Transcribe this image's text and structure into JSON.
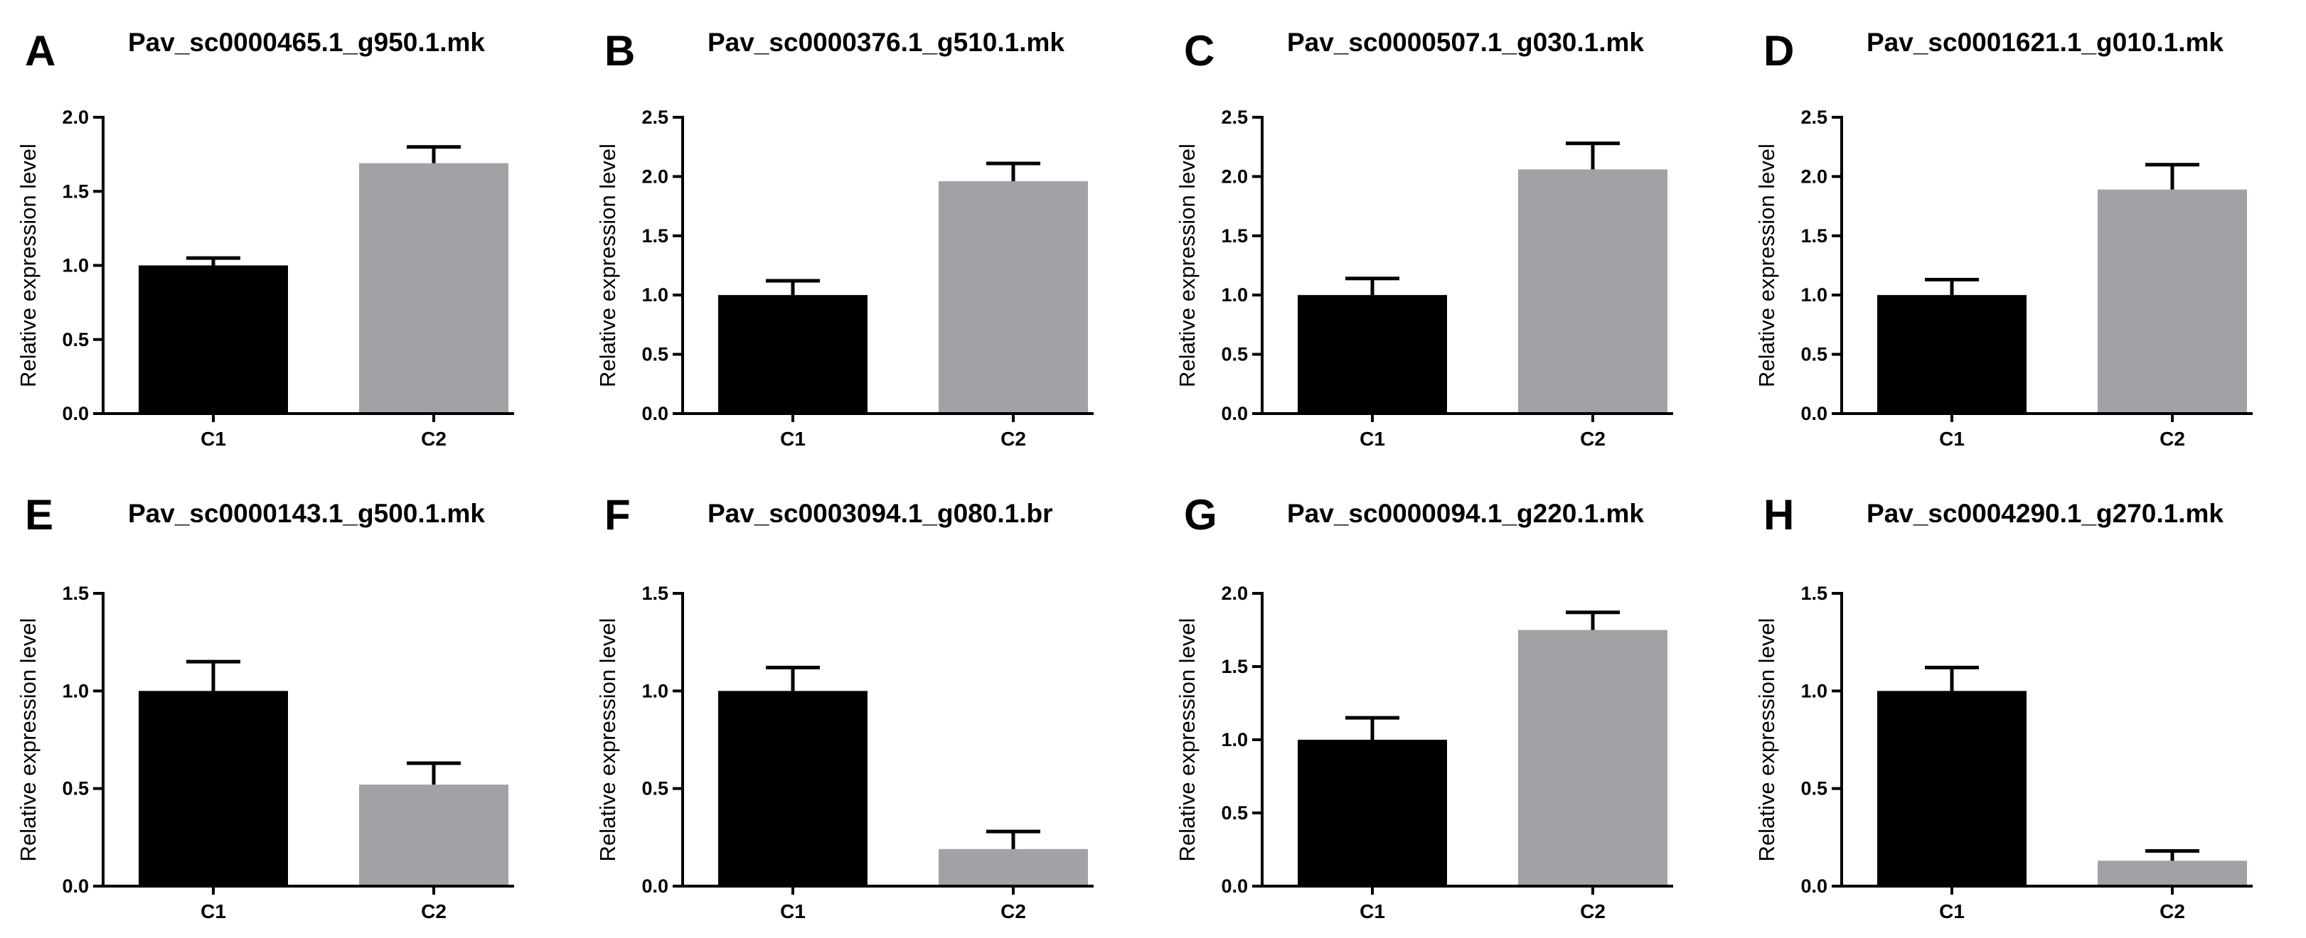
{
  "colors": {
    "c1_bar": "#000000",
    "c2_bar": "#a3a1a6",
    "axis": "#000000"
  },
  "chart_data": [
    {
      "panel": "A",
      "type": "bar",
      "title": "Pav_sc0000465.1_g950.1.mk",
      "xlabel": "",
      "ylabel": "Relative expression level",
      "categories": [
        "C1",
        "C2"
      ],
      "values": [
        1.0,
        1.69
      ],
      "errors": [
        0.05,
        0.11
      ],
      "ylim": [
        0,
        2.0
      ],
      "yticks": [
        0.0,
        0.5,
        1.0,
        1.5,
        2.0
      ],
      "ytick_labels": [
        "0.0",
        "0.5",
        "1.0",
        "1.5",
        "2.0"
      ]
    },
    {
      "panel": "B",
      "type": "bar",
      "title": "Pav_sc0000376.1_g510.1.mk",
      "xlabel": "",
      "ylabel": "Relative expression level",
      "categories": [
        "C1",
        "C2"
      ],
      "values": [
        1.0,
        1.96
      ],
      "errors": [
        0.12,
        0.15
      ],
      "ylim": [
        0,
        2.5
      ],
      "yticks": [
        0.0,
        0.5,
        1.0,
        1.5,
        2.0,
        2.5
      ],
      "ytick_labels": [
        "0.0",
        "0.5",
        "1.0",
        "1.5",
        "2.0",
        "2.5"
      ]
    },
    {
      "panel": "C",
      "type": "bar",
      "title": "Pav_sc0000507.1_g030.1.mk",
      "xlabel": "",
      "ylabel": "Relative expression level",
      "categories": [
        "C1",
        "C2"
      ],
      "values": [
        1.0,
        2.06
      ],
      "errors": [
        0.14,
        0.22
      ],
      "ylim": [
        0,
        2.5
      ],
      "yticks": [
        0.0,
        0.5,
        1.0,
        1.5,
        2.0,
        2.5
      ],
      "ytick_labels": [
        "0.0",
        "0.5",
        "1.0",
        "1.5",
        "2.0",
        "2.5"
      ]
    },
    {
      "panel": "D",
      "type": "bar",
      "title": "Pav_sc0001621.1_g010.1.mk",
      "xlabel": "",
      "ylabel": "Relative expression level",
      "categories": [
        "C1",
        "C2"
      ],
      "values": [
        1.0,
        1.89
      ],
      "errors": [
        0.13,
        0.21
      ],
      "ylim": [
        0,
        2.5
      ],
      "yticks": [
        0.0,
        0.5,
        1.0,
        1.5,
        2.0,
        2.5
      ],
      "ytick_labels": [
        "0.0",
        "0.5",
        "1.0",
        "1.5",
        "2.0",
        "2.5"
      ]
    },
    {
      "panel": "E",
      "type": "bar",
      "title": "Pav_sc0000143.1_g500.1.mk",
      "xlabel": "",
      "ylabel": "Relative expression level",
      "categories": [
        "C1",
        "C2"
      ],
      "values": [
        1.0,
        0.52
      ],
      "errors": [
        0.15,
        0.11
      ],
      "ylim": [
        0,
        1.5
      ],
      "yticks": [
        0.0,
        0.5,
        1.0,
        1.5
      ],
      "ytick_labels": [
        "0.0",
        "0.5",
        "1.0",
        "1.5"
      ]
    },
    {
      "panel": "F",
      "type": "bar",
      "title": "Pav_sc0003094.1_g080.1.br",
      "xlabel": "",
      "ylabel": "Relative expression level",
      "categories": [
        "C1",
        "C2"
      ],
      "values": [
        1.0,
        0.19
      ],
      "errors": [
        0.12,
        0.09
      ],
      "ylim": [
        0,
        1.5
      ],
      "yticks": [
        0.0,
        0.5,
        1.0,
        1.5
      ],
      "ytick_labels": [
        "0.0",
        "0.5",
        "1.0",
        "1.5"
      ]
    },
    {
      "panel": "G",
      "type": "bar",
      "title": "Pav_sc0000094.1_g220.1.mk",
      "xlabel": "",
      "ylabel": "Relative expression level",
      "categories": [
        "C1",
        "C2"
      ],
      "values": [
        1.0,
        1.75
      ],
      "errors": [
        0.15,
        0.12
      ],
      "ylim": [
        0,
        2.0
      ],
      "yticks": [
        0.0,
        0.5,
        1.0,
        1.5,
        2.0
      ],
      "ytick_labels": [
        "0.0",
        "0.5",
        "1.0",
        "1.5",
        "2.0"
      ]
    },
    {
      "panel": "H",
      "type": "bar",
      "title": "Pav_sc0004290.1_g270.1.mk",
      "xlabel": "",
      "ylabel": "Relative expression level",
      "categories": [
        "C1",
        "C2"
      ],
      "values": [
        1.0,
        0.13
      ],
      "errors": [
        0.12,
        0.05
      ],
      "ylim": [
        0,
        1.5
      ],
      "yticks": [
        0.0,
        0.5,
        1.0,
        1.5
      ],
      "ytick_labels": [
        "0.0",
        "0.5",
        "1.0",
        "1.5"
      ]
    }
  ]
}
